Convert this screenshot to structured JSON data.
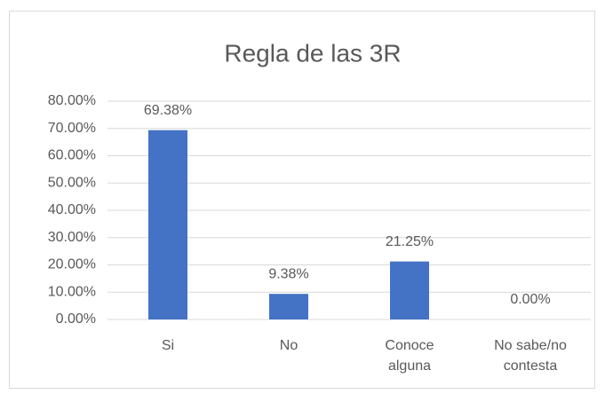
{
  "chart_data": {
    "type": "bar",
    "title": "Regla de las 3R",
    "categories": [
      "Si",
      "No",
      "Conoce alguna",
      "No sabe/no contesta"
    ],
    "values": [
      69.38,
      9.38,
      21.25,
      0.0
    ],
    "value_labels": [
      "69.38%",
      "9.38%",
      "21.25%",
      "0.00%"
    ],
    "color": "#4472c4",
    "ylim": [
      0,
      80
    ],
    "yticks": [
      {
        "value": 0,
        "label": "0.00%"
      },
      {
        "value": 10,
        "label": "10.00%"
      },
      {
        "value": 20,
        "label": "20.00%"
      },
      {
        "value": 30,
        "label": "30.00%"
      },
      {
        "value": 40,
        "label": "40.00%"
      },
      {
        "value": 50,
        "label": "50.00%"
      },
      {
        "value": 60,
        "label": "60.00%"
      },
      {
        "value": 70,
        "label": "70.00%"
      },
      {
        "value": 80,
        "label": "80.00%"
      }
    ],
    "grid": true
  }
}
